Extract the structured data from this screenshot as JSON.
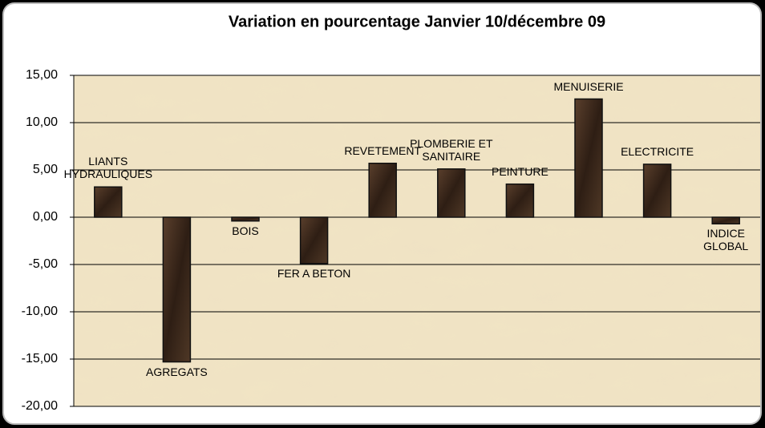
{
  "chart_data": {
    "type": "bar",
    "title": "Variation en pourcentage Janvier 10/décembre 09",
    "categories": [
      "LIANTS\nHYDRAULIQUES",
      "AGREGATS",
      "BOIS",
      "FER A BETON",
      "REVETEMENT",
      "PLOMBERIE ET\nSANITAIRE",
      "PEINTURE",
      "MENUISERIE",
      "ELECTRICITE",
      "INDICE GLOBAL"
    ],
    "values": [
      3.2,
      -15.3,
      -0.4,
      -4.9,
      5.7,
      5.1,
      3.5,
      12.5,
      5.6,
      -0.7
    ],
    "color": "#3e2a1c",
    "ylim": [
      -20,
      15
    ],
    "yticks": [
      {
        "value": -20,
        "label": "-20,00"
      },
      {
        "value": -15,
        "label": "-15,00"
      },
      {
        "value": -10,
        "label": "-10,00"
      },
      {
        "value": -5,
        "label": "-5,00"
      },
      {
        "value": 0,
        "label": "0,00"
      },
      {
        "value": 5,
        "label": "5,00"
      },
      {
        "value": 10,
        "label": "10,00"
      },
      {
        "value": 15,
        "label": "15,00"
      }
    ],
    "grid": true
  }
}
